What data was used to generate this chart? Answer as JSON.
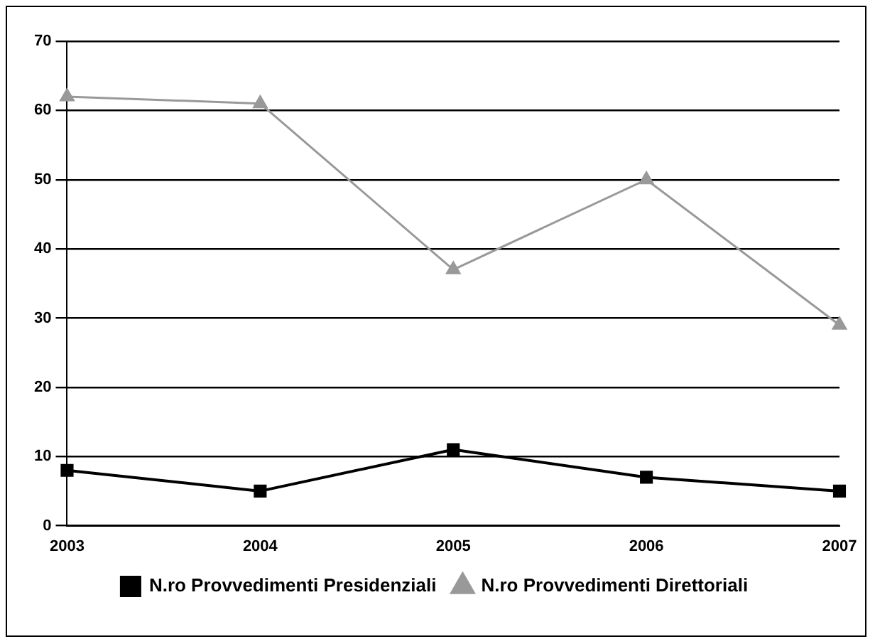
{
  "chart_data": {
    "type": "line",
    "categories": [
      "2003",
      "2004",
      "2005",
      "2006",
      "2007"
    ],
    "series": [
      {
        "name": "N.ro Provvedimenti Presidenziali",
        "color": "#000000",
        "marker": "square",
        "values": [
          8,
          5,
          11,
          7,
          5
        ]
      },
      {
        "name": "N.ro Provvedimenti Direttoriali",
        "color": "#999999",
        "marker": "triangle",
        "values": [
          62,
          61,
          37,
          50,
          29
        ]
      }
    ],
    "ylim": [
      0,
      70
    ],
    "yticks": [
      0,
      10,
      20,
      30,
      40,
      50,
      60,
      70
    ],
    "grid": "y",
    "legend": "bottom"
  }
}
